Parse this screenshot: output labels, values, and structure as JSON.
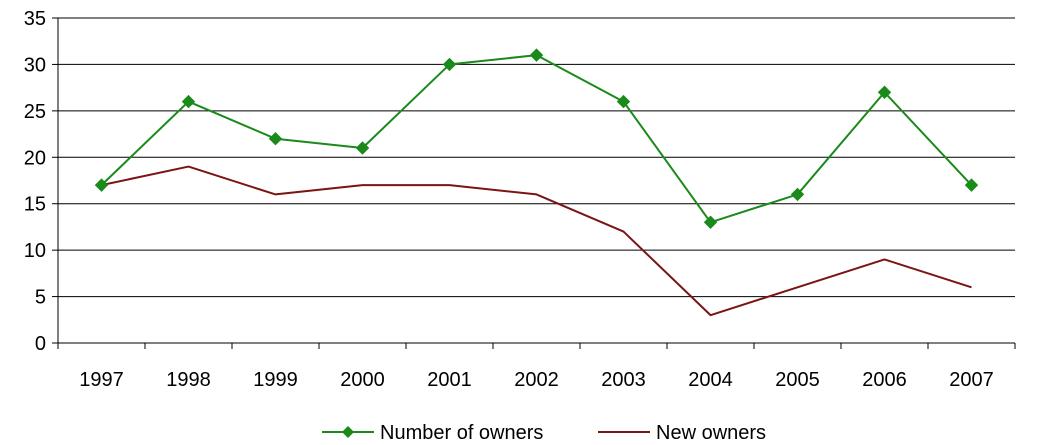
{
  "chart_data": {
    "type": "line",
    "title": "",
    "xlabel": "",
    "ylabel": "",
    "categories": [
      "1997",
      "1998",
      "1999",
      "2000",
      "2001",
      "2002",
      "2003",
      "2004",
      "2005",
      "2006",
      "2007"
    ],
    "ylim": [
      0,
      35
    ],
    "yticks": [
      0,
      5,
      10,
      15,
      20,
      25,
      30,
      35
    ],
    "grid": true,
    "legend_position": "bottom",
    "series": [
      {
        "name": "Number of owners",
        "values": [
          17,
          26,
          22,
          21,
          30,
          31,
          26,
          13,
          16,
          27,
          17
        ],
        "color": "#1a8a1a",
        "marker": "diamond"
      },
      {
        "name": "New owners",
        "values": [
          17,
          19,
          16,
          17,
          17,
          16,
          12,
          3,
          6,
          9,
          6
        ],
        "color": "#7b1414",
        "marker": "none"
      }
    ]
  }
}
